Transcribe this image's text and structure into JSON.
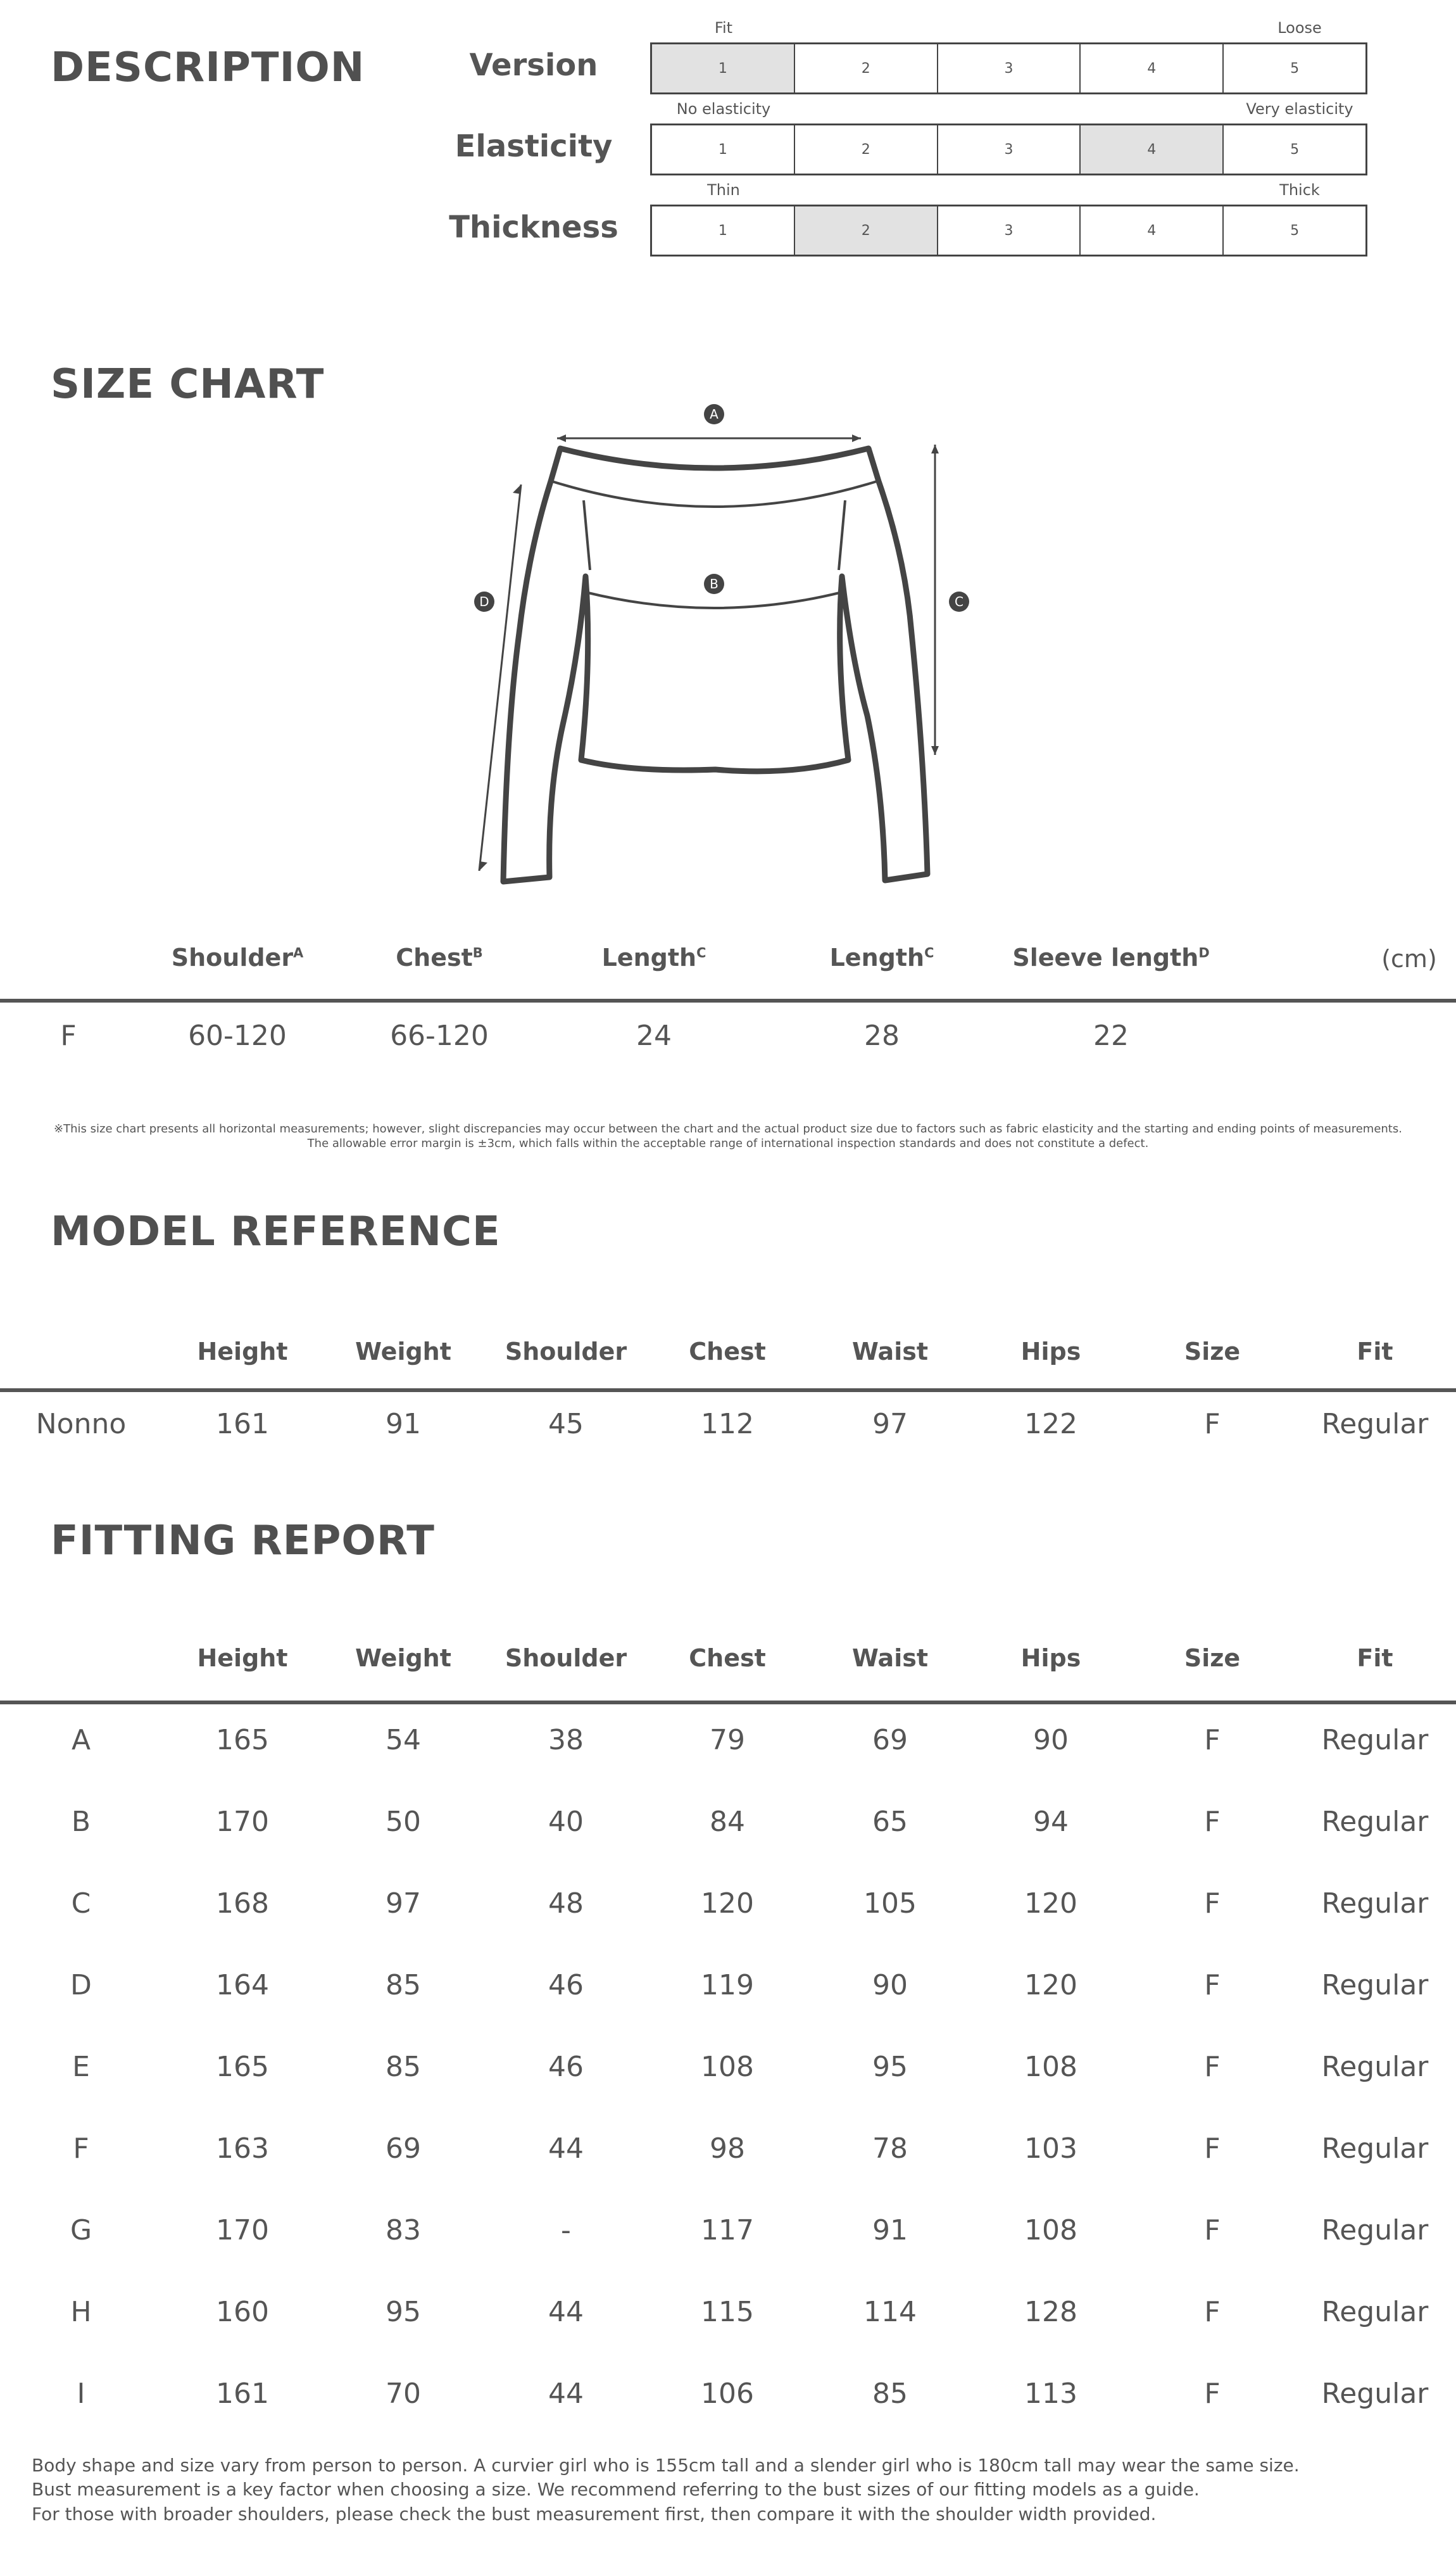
{
  "description": {
    "title": "DESCRIPTION",
    "scales": [
      {
        "label": "Version",
        "left": "Fit",
        "right": "Loose",
        "options": [
          "1",
          "2",
          "3",
          "4",
          "5"
        ],
        "selected": 1
      },
      {
        "label": "Elasticity",
        "left": "No elasticity",
        "right": "Very elasticity",
        "options": [
          "1",
          "2",
          "3",
          "4",
          "5"
        ],
        "selected": 4
      },
      {
        "label": "Thickness",
        "left": "Thin",
        "right": "Thick",
        "options": [
          "1",
          "2",
          "3",
          "4",
          "5"
        ],
        "selected": 2
      }
    ]
  },
  "size_chart": {
    "title": "SIZE CHART",
    "diagram_markers": [
      "A",
      "B",
      "C",
      "D"
    ],
    "headers": [
      "",
      "Shoulder",
      "Chest",
      "Length",
      "Length",
      "Sleeve length"
    ],
    "header_marks": [
      "",
      "A",
      "B",
      "C",
      "C",
      "D"
    ],
    "unit": "(cm)",
    "rows": [
      [
        "F",
        "60-120",
        "66-120",
        "24",
        "28",
        "22"
      ]
    ],
    "note_line1": "※This size chart presents all horizontal measurements; however, slight discrepancies may occur between the chart and the actual product size due to factors such as fabric elasticity and the starting and ending points of measurements.",
    "note_line2": "The allowable error margin is ±3cm, which falls within the acceptable range of international inspection standards and does not constitute a defect."
  },
  "model_reference": {
    "title": "MODEL REFERENCE",
    "headers": [
      "",
      "Height",
      "Weight",
      "Shoulder",
      "Chest",
      "Waist",
      "Hips",
      "Size",
      "Fit"
    ],
    "rows": [
      [
        "Nonno",
        "161",
        "91",
        "45",
        "112",
        "97",
        "122",
        "F",
        "Regular"
      ]
    ]
  },
  "fitting_report": {
    "title": "FITTING REPORT",
    "headers": [
      "",
      "Height",
      "Weight",
      "Shoulder",
      "Chest",
      "Waist",
      "Hips",
      "Size",
      "Fit"
    ],
    "rows": [
      [
        "A",
        "165",
        "54",
        "38",
        "79",
        "69",
        "90",
        "F",
        "Regular"
      ],
      [
        "B",
        "170",
        "50",
        "40",
        "84",
        "65",
        "94",
        "F",
        "Regular"
      ],
      [
        "C",
        "168",
        "97",
        "48",
        "120",
        "105",
        "120",
        "F",
        "Regular"
      ],
      [
        "D",
        "164",
        "85",
        "46",
        "119",
        "90",
        "120",
        "F",
        "Regular"
      ],
      [
        "E",
        "165",
        "85",
        "46",
        "108",
        "95",
        "108",
        "F",
        "Regular"
      ],
      [
        "F",
        "163",
        "69",
        "44",
        "98",
        "78",
        "103",
        "F",
        "Regular"
      ],
      [
        "G",
        "170",
        "83",
        "-",
        "117",
        "91",
        "108",
        "F",
        "Regular"
      ],
      [
        "H",
        "160",
        "95",
        "44",
        "115",
        "114",
        "128",
        "F",
        "Regular"
      ],
      [
        "I",
        "161",
        "70",
        "44",
        "106",
        "85",
        "113",
        "F",
        "Regular"
      ]
    ]
  },
  "footer": [
    "Body shape and size vary from person to person. A curvier girl who is 155cm tall and a slender girl who is 180cm tall may wear the same size.",
    "Bust measurement is a key factor when choosing a size. We recommend referring to the bust sizes of our fitting models as a guide.",
    "For those with broader shoulders, please check the bust measurement first, then compare it with the shoulder width provided."
  ]
}
